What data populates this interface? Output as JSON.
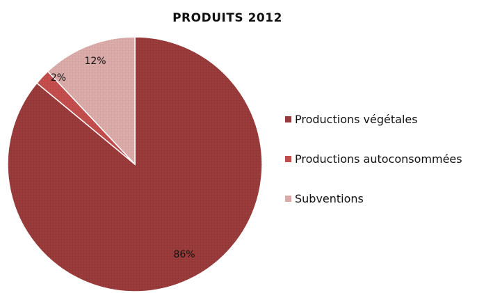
{
  "chart_data": {
    "type": "pie",
    "title": "PRODUITS 2012",
    "slices": [
      {
        "label": "Productions végétales",
        "value": 86,
        "value_label": "86%",
        "color": "#993a3a"
      },
      {
        "label": "Productions autoconsommées",
        "value": 2,
        "value_label": "2%",
        "color": "#c24c4c"
      },
      {
        "label": "Subventions",
        "value": 12,
        "value_label": "12%",
        "color": "#d9aaa7"
      }
    ],
    "start": "12 o'clock, clockwise",
    "legend_position": "right"
  }
}
